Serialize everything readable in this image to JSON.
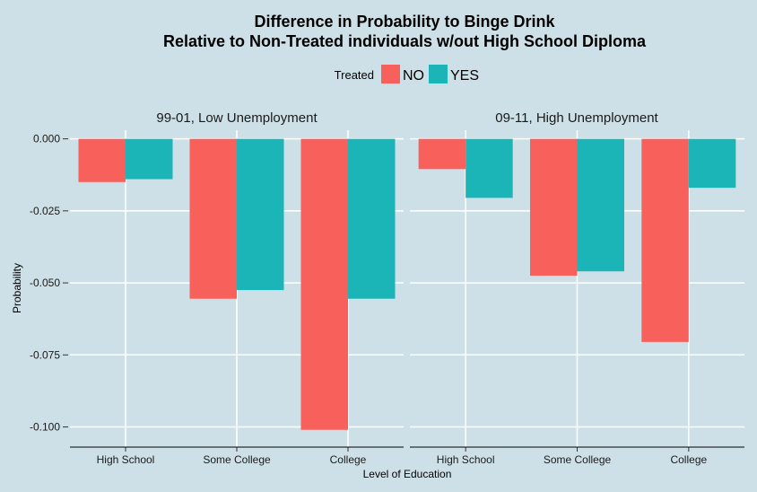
{
  "chart_data": {
    "type": "bar",
    "title": "Difference in Probability to Binge Drink",
    "subtitle": "Relative to Non-Treated individuals w/out High School Diploma",
    "xlabel": "Level of Education",
    "ylabel": "Probability",
    "ylim": [
      -0.107,
      0.003
    ],
    "yticks": [
      0.0,
      -0.025,
      -0.05,
      -0.075,
      -0.1
    ],
    "ytick_labels": [
      "0.000",
      "-0.025",
      "-0.050",
      "-0.075",
      "-0.100"
    ],
    "grid": true,
    "legend": {
      "title": "Treated",
      "placement": "top",
      "entries": [
        {
          "label": "NO",
          "color": "#f8605c"
        },
        {
          "label": "YES",
          "color": "#1bb5b8"
        }
      ]
    },
    "categories": [
      "High School",
      "Some College",
      "College"
    ],
    "panels": [
      {
        "label": "99-01, Low Unemployment",
        "series": [
          {
            "name": "NO",
            "values": [
              -0.015,
              -0.0555,
              -0.101
            ]
          },
          {
            "name": "YES",
            "values": [
              -0.014,
              -0.0525,
              -0.0555
            ]
          }
        ]
      },
      {
        "label": "09-11, High Unemployment",
        "series": [
          {
            "name": "NO",
            "values": [
              -0.0105,
              -0.0475,
              -0.0705
            ]
          },
          {
            "name": "YES",
            "values": [
              -0.0205,
              -0.046,
              -0.017
            ]
          }
        ]
      }
    ],
    "colors": {
      "background": "#cee0e7",
      "grid": "#ffffff",
      "NO": "#f8605c",
      "YES": "#1bb5b8"
    }
  }
}
